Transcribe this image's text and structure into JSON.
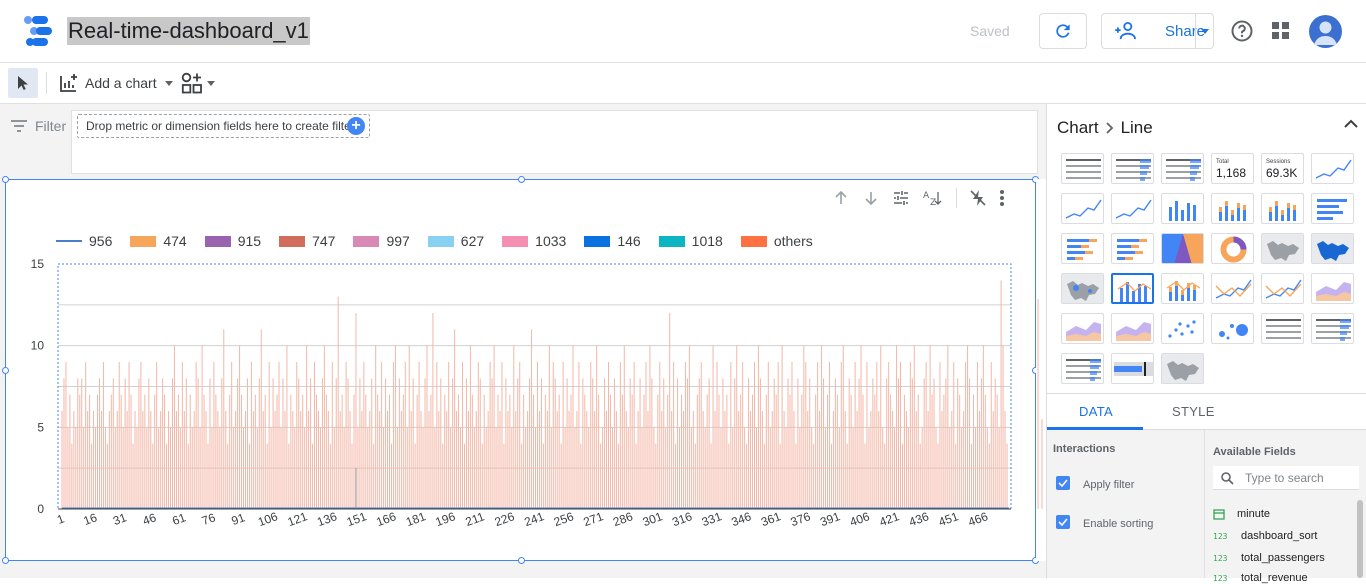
{
  "app": {
    "report_title": "Real-time-dashboard_v1",
    "saved_status": "Saved",
    "share_label": "Share"
  },
  "toolbar": {
    "add_chart_label": "Add a chart"
  },
  "filterbar": {
    "label": "Filter",
    "drop_hint": "Drop metric or dimension fields here to create filters"
  },
  "panel": {
    "breadcrumb_root": "Chart",
    "breadcrumb_leaf": "Line",
    "tabs": [
      "DATA",
      "STYLE"
    ],
    "interactions_title": "Interactions",
    "interactions": [
      "Apply filter",
      "Enable sorting"
    ],
    "available_fields_title": "Available Fields",
    "search_placeholder": "Type to search",
    "fields": [
      {
        "type": "date",
        "name": "minute"
      },
      {
        "type": "123",
        "name": "dashboard_sort"
      },
      {
        "type": "123",
        "name": "total_passengers"
      },
      {
        "type": "123",
        "name": "total_revenue"
      }
    ],
    "tile_scorecards": [
      {
        "label": "Total",
        "value": "1,168"
      },
      {
        "label": "Sessions",
        "value": "69.3K"
      }
    ]
  },
  "chart_data": {
    "type": "bar",
    "legend": [
      {
        "name": "956",
        "color": "#4a7ec9",
        "kind": "line"
      },
      {
        "name": "474",
        "color": "#f6a55b",
        "kind": "bar"
      },
      {
        "name": "915",
        "color": "#9a63b0",
        "kind": "bar"
      },
      {
        "name": "747",
        "color": "#d06d5c",
        "kind": "bar"
      },
      {
        "name": "997",
        "color": "#d989b6",
        "kind": "bar"
      },
      {
        "name": "627",
        "color": "#88d1f3",
        "kind": "bar"
      },
      {
        "name": "1033",
        "color": "#f48fb1",
        "kind": "bar"
      },
      {
        "name": "146",
        "color": "#0a72e0",
        "kind": "bar"
      },
      {
        "name": "1018",
        "color": "#0bb5c2",
        "kind": "bar"
      },
      {
        "name": "others",
        "color": "#ff7043",
        "kind": "bar"
      }
    ],
    "y_ticks": [
      "0",
      "5",
      "10",
      "15"
    ],
    "ylim": [
      0,
      15
    ],
    "x_ticks": [
      "1",
      "16",
      "31",
      "46",
      "61",
      "76",
      "91",
      "106",
      "121",
      "136",
      "151",
      "166",
      "181",
      "196",
      "211",
      "226",
      "241",
      "256",
      "271",
      "286",
      "301",
      "316",
      "331",
      "346",
      "361",
      "376",
      "391",
      "406",
      "421",
      "436",
      "451",
      "466"
    ],
    "bar_color": "#f4b6a6",
    "line_color": "#4a7ec9",
    "values": [
      6,
      8,
      9,
      5,
      7,
      4,
      6,
      5,
      8,
      7,
      8,
      5,
      9,
      6,
      7,
      4,
      6,
      5,
      7,
      8,
      6,
      9,
      5,
      4,
      6,
      7,
      8,
      5,
      6,
      9,
      7,
      5,
      8,
      6,
      9,
      7,
      4,
      6,
      5,
      8,
      9,
      6,
      7,
      5,
      8,
      6,
      4,
      7,
      9,
      5,
      6,
      8,
      7,
      4,
      6,
      5,
      8,
      10,
      6,
      7,
      5,
      9,
      6,
      8,
      4,
      7,
      5,
      6,
      9,
      8,
      5,
      10,
      7,
      6,
      4,
      8,
      5,
      9,
      7,
      6,
      5,
      8,
      11,
      6,
      4,
      7,
      9,
      5,
      6,
      8,
      10,
      7,
      5,
      6,
      8,
      4,
      9,
      6,
      7,
      5,
      8,
      11,
      6,
      7,
      4,
      9,
      5,
      8,
      6,
      7,
      9,
      5,
      8,
      6,
      10,
      4,
      7,
      6,
      5,
      9,
      8,
      6,
      7,
      5,
      10,
      6,
      8,
      4,
      9,
      7,
      6,
      5,
      8,
      10,
      7,
      6,
      4,
      9,
      5,
      8,
      13,
      6,
      7,
      5,
      9,
      8,
      6,
      4,
      7,
      12,
      5,
      8,
      6,
      9,
      7,
      5,
      6,
      8,
      4,
      10,
      7,
      6,
      9,
      5,
      8,
      6,
      7,
      4,
      9,
      10,
      5,
      8,
      6,
      7,
      9,
      5,
      10,
      6,
      8,
      4,
      7,
      9,
      6,
      5,
      8,
      10,
      6,
      7,
      12,
      5,
      9,
      6,
      8,
      4,
      7,
      6,
      9,
      5,
      8,
      11,
      6,
      7,
      5,
      9,
      4,
      8,
      6,
      10,
      7,
      5,
      6,
      9,
      8,
      4,
      7,
      5,
      6,
      9,
      8,
      10,
      5,
      7,
      6,
      9,
      4,
      8,
      6,
      7,
      5,
      10,
      6,
      8,
      9,
      4,
      7,
      5,
      6,
      8,
      11,
      7,
      5,
      9,
      6,
      8,
      4,
      7,
      6,
      10,
      5,
      9,
      8,
      6,
      7,
      4,
      9,
      5,
      8,
      6,
      7,
      10,
      5,
      6,
      9,
      4,
      8,
      7,
      6,
      5,
      9,
      8,
      6,
      10,
      7,
      4,
      5,
      8,
      6,
      9,
      7,
      5,
      8,
      6,
      4,
      9,
      7,
      10,
      6,
      5,
      8,
      7,
      9,
      4,
      6,
      8,
      5,
      7,
      9,
      6,
      10,
      8,
      5,
      4,
      7,
      9,
      6,
      8,
      5,
      7,
      12,
      6,
      9,
      4,
      8,
      5,
      7,
      6,
      9,
      8,
      10,
      5,
      6,
      4,
      7,
      8,
      9,
      6,
      5,
      7,
      8,
      4,
      10,
      6,
      9,
      7,
      5,
      8,
      6,
      7,
      4,
      9,
      5,
      8,
      10,
      6,
      7,
      9,
      5,
      4,
      8,
      6,
      7,
      9,
      5,
      10,
      8,
      6,
      4,
      7,
      9,
      5,
      6,
      8,
      7,
      9,
      4,
      10,
      6,
      5,
      8,
      7,
      9,
      6,
      4,
      8,
      5,
      7,
      10,
      9,
      6,
      8,
      5,
      4,
      7,
      9,
      6,
      10,
      8,
      5,
      7,
      9,
      4,
      6,
      8,
      7,
      5,
      9,
      10,
      6,
      4,
      8,
      7,
      5,
      9,
      6,
      8,
      10,
      7,
      4,
      9,
      5,
      6,
      8,
      7,
      9,
      6,
      10,
      5,
      4,
      8,
      9,
      7,
      6,
      5,
      10,
      8,
      9,
      4,
      7,
      6,
      5,
      9,
      8,
      10,
      6,
      7,
      4,
      5,
      8,
      9,
      6,
      10,
      7,
      8,
      5,
      4,
      9,
      6,
      7,
      8,
      10,
      5,
      6,
      9,
      4,
      8,
      7,
      5,
      6,
      9,
      10,
      8,
      4,
      7,
      5,
      9,
      6,
      8,
      10,
      7,
      5,
      4,
      9,
      6,
      8,
      7,
      5,
      14,
      10,
      6,
      4
    ]
  }
}
